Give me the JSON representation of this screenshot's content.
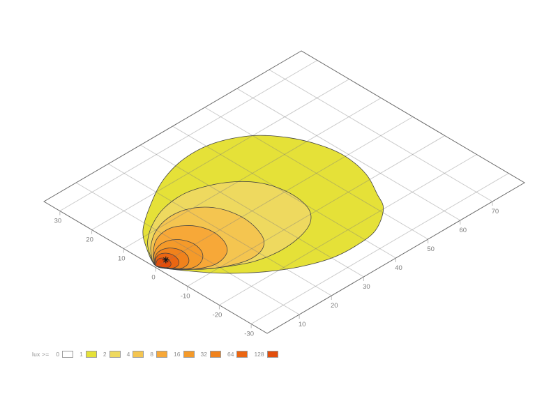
{
  "legend": {
    "label": "lux >=",
    "items": [
      {
        "value": "0",
        "color": "#ffffff"
      },
      {
        "value": "1",
        "color": "#e5e138"
      },
      {
        "value": "2",
        "color": "#eed95f"
      },
      {
        "value": "4",
        "color": "#f4c550"
      },
      {
        "value": "8",
        "color": "#f7a838"
      },
      {
        "value": "16",
        "color": "#f49a2a"
      },
      {
        "value": "32",
        "color": "#f0821c"
      },
      {
        "value": "64",
        "color": "#eb6612"
      },
      {
        "value": "128",
        "color": "#e24e0c"
      }
    ]
  },
  "chart_data": {
    "type": "heatmap",
    "subtype": "filled-contour-isolux-ground-plane-3d",
    "title": "",
    "xlabel": "",
    "ylabel": "",
    "x_axis": {
      "range": [
        0,
        80
      ],
      "ticks": [
        10,
        20,
        30,
        40,
        50,
        60,
        70
      ]
    },
    "y_axis": {
      "range": [
        -35,
        35
      ],
      "ticks": [
        30,
        20,
        10,
        0,
        -10,
        -20,
        -30
      ]
    },
    "grid": "on",
    "levels": [
      1,
      2,
      4,
      8,
      16,
      32,
      64,
      128
    ],
    "level_colors": [
      "#e5e138",
      "#eed95f",
      "#f4c550",
      "#f7a838",
      "#f49a2a",
      "#f0821c",
      "#eb6612",
      "#e24e0c"
    ],
    "source_marker": {
      "u": 3.6,
      "v": 0.4,
      "symbol": "asterisk"
    },
    "contours": [
      {
        "level": 1,
        "points": [
          [
            0.5,
            0.6
          ],
          [
            4,
            7
          ],
          [
            8,
            12
          ],
          [
            15,
            17
          ],
          [
            24,
            22
          ],
          [
            33,
            24.5
          ],
          [
            42,
            24
          ],
          [
            50,
            20
          ],
          [
            55,
            14
          ],
          [
            58,
            7
          ],
          [
            59,
            0
          ],
          [
            57.5,
            -8
          ],
          [
            54,
            -15
          ],
          [
            51,
            -20
          ],
          [
            44,
            -24.5
          ],
          [
            37,
            -25.5
          ],
          [
            30,
            -25
          ],
          [
            23,
            -22.5
          ],
          [
            17,
            -19
          ],
          [
            12,
            -15
          ],
          [
            8,
            -11
          ],
          [
            4.5,
            -6.5
          ],
          [
            2,
            -2.8
          ]
        ]
      },
      {
        "level": 2,
        "points": [
          [
            0.5,
            0.6
          ],
          [
            3,
            5
          ],
          [
            6,
            8.5
          ],
          [
            11,
            12
          ],
          [
            17,
            14.5
          ],
          [
            24,
            15.2
          ],
          [
            30,
            13.5
          ],
          [
            35,
            10.5
          ],
          [
            38.5,
            6.5
          ],
          [
            40.3,
            1.5
          ],
          [
            40.5,
            -4
          ],
          [
            39,
            -9
          ],
          [
            35.5,
            -12.5
          ],
          [
            30,
            -14.5
          ],
          [
            23.5,
            -15
          ],
          [
            17,
            -13.8
          ],
          [
            11.5,
            -11
          ],
          [
            7,
            -7.8
          ],
          [
            3.5,
            -4.2
          ],
          [
            1.6,
            -1.8
          ]
        ]
      },
      {
        "level": 4,
        "points": [
          [
            0.5,
            0.6
          ],
          [
            2.5,
            3.8
          ],
          [
            5,
            6.5
          ],
          [
            9,
            9.3
          ],
          [
            13.5,
            11
          ],
          [
            18,
            11.2
          ],
          [
            22,
            9.7
          ],
          [
            24.8,
            7
          ],
          [
            26.3,
            3.5
          ],
          [
            26.8,
            -1
          ],
          [
            26,
            -5.5
          ],
          [
            24.2,
            -9.5
          ],
          [
            21,
            -12
          ],
          [
            16.5,
            -12.5
          ],
          [
            11.5,
            -10.8
          ],
          [
            7.3,
            -8.2
          ],
          [
            4.4,
            -5.4
          ],
          [
            2.2,
            -2.8
          ]
        ]
      },
      {
        "level": 8,
        "points": [
          [
            0.5,
            0.6
          ],
          [
            2.2,
            2.9
          ],
          [
            4.2,
            4.9
          ],
          [
            6.8,
            6.9
          ],
          [
            9.8,
            8.1
          ],
          [
            13,
            8.1
          ],
          [
            15.6,
            6.6
          ],
          [
            17.4,
            4.4
          ],
          [
            18.3,
            1.6
          ],
          [
            18.2,
            -1.6
          ],
          [
            17.2,
            -4.6
          ],
          [
            15.3,
            -7
          ],
          [
            12.5,
            -8.3
          ],
          [
            9.6,
            -8.4
          ],
          [
            6.9,
            -7.3
          ],
          [
            4.6,
            -5.7
          ],
          [
            2.9,
            -3.8
          ],
          [
            1.5,
            -1.9
          ]
        ]
      },
      {
        "level": 16,
        "points": [
          [
            0.5,
            0.6
          ],
          [
            1.8,
            2.2
          ],
          [
            3.2,
            3.7
          ],
          [
            5.2,
            4.9
          ],
          [
            7.2,
            5.4
          ],
          [
            9.2,
            5.1
          ],
          [
            10.8,
            4
          ],
          [
            11.8,
            2.3
          ],
          [
            12.2,
            0.2
          ],
          [
            11.8,
            -2
          ],
          [
            10.8,
            -3.9
          ],
          [
            9.2,
            -5.3
          ],
          [
            7.2,
            -6
          ],
          [
            5.2,
            -5.7
          ],
          [
            3.5,
            -4.6
          ],
          [
            2.2,
            -3.2
          ],
          [
            1.2,
            -1.6
          ]
        ]
      },
      {
        "level": 32,
        "points": [
          [
            0.5,
            0.5
          ],
          [
            1.6,
            1.8
          ],
          [
            2.8,
            2.9
          ],
          [
            4.2,
            3.6
          ],
          [
            5.8,
            3.7
          ],
          [
            7.2,
            3.1
          ],
          [
            8.1,
            1.9
          ],
          [
            8.5,
            0.4
          ],
          [
            8.3,
            -1.2
          ],
          [
            7.6,
            -2.7
          ],
          [
            6.4,
            -3.9
          ],
          [
            4.9,
            -4.4
          ],
          [
            3.4,
            -4.1
          ],
          [
            2.2,
            -3.1
          ],
          [
            1.1,
            -1.5
          ]
        ]
      },
      {
        "level": 64,
        "points": [
          [
            0.5,
            0.5
          ],
          [
            1.4,
            1.5
          ],
          [
            2.3,
            2.3
          ],
          [
            3.4,
            2.8
          ],
          [
            4.5,
            2.8
          ],
          [
            5.4,
            2.2
          ],
          [
            5.9,
            1.2
          ],
          [
            6,
            0
          ],
          [
            5.7,
            -1.2
          ],
          [
            5,
            -2.3
          ],
          [
            3.9,
            -3
          ],
          [
            2.8,
            -3
          ],
          [
            1.9,
            -2.4
          ],
          [
            1,
            -1.2
          ]
        ]
      },
      {
        "level": 128,
        "points": [
          [
            0.5,
            0.4
          ],
          [
            1.3,
            1.1
          ],
          [
            2,
            1.6
          ],
          [
            2.8,
            1.8
          ],
          [
            3.5,
            1.5
          ],
          [
            3.9,
            0.8
          ],
          [
            4,
            -0.1
          ],
          [
            3.7,
            -1
          ],
          [
            3.1,
            -1.7
          ],
          [
            2.3,
            -2
          ],
          [
            1.6,
            -1.7
          ],
          [
            0.9,
            -0.8
          ]
        ]
      }
    ]
  }
}
